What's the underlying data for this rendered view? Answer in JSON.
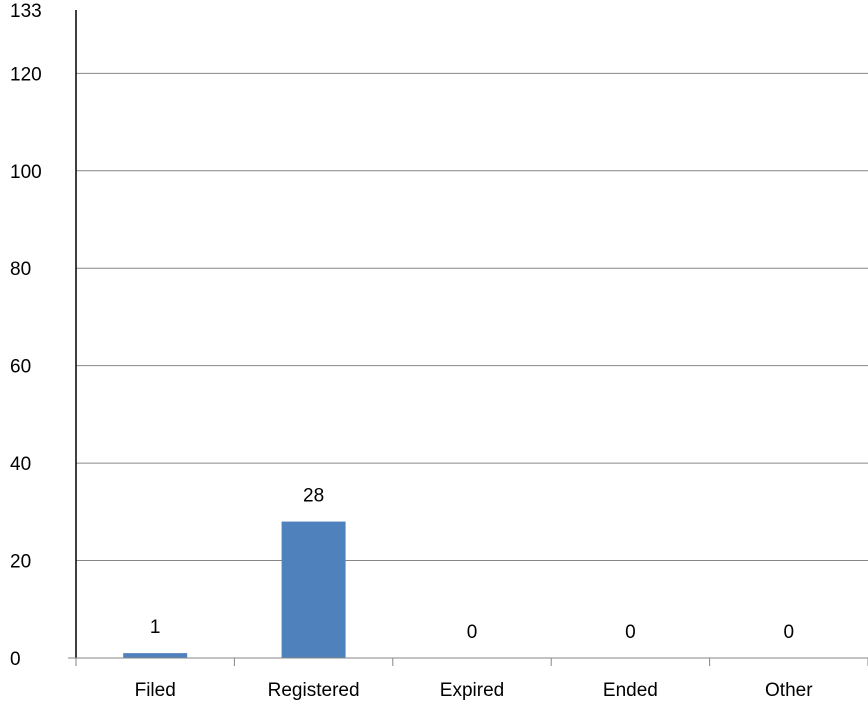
{
  "chart_data": {
    "type": "bar",
    "categories": [
      "Filed",
      "Registered",
      "Expired",
      "Ended",
      "Other"
    ],
    "values": [
      1,
      28,
      0,
      0,
      0
    ],
    "data_labels": [
      "1",
      "28",
      "0",
      "0",
      "0"
    ],
    "y_ticks": [
      0,
      20,
      40,
      60,
      80,
      100,
      120,
      133
    ],
    "ylim": [
      0,
      133
    ],
    "grid": true,
    "colors": {
      "bar": "#4F81BD",
      "grid": "#868686",
      "axis": "#000000"
    }
  }
}
